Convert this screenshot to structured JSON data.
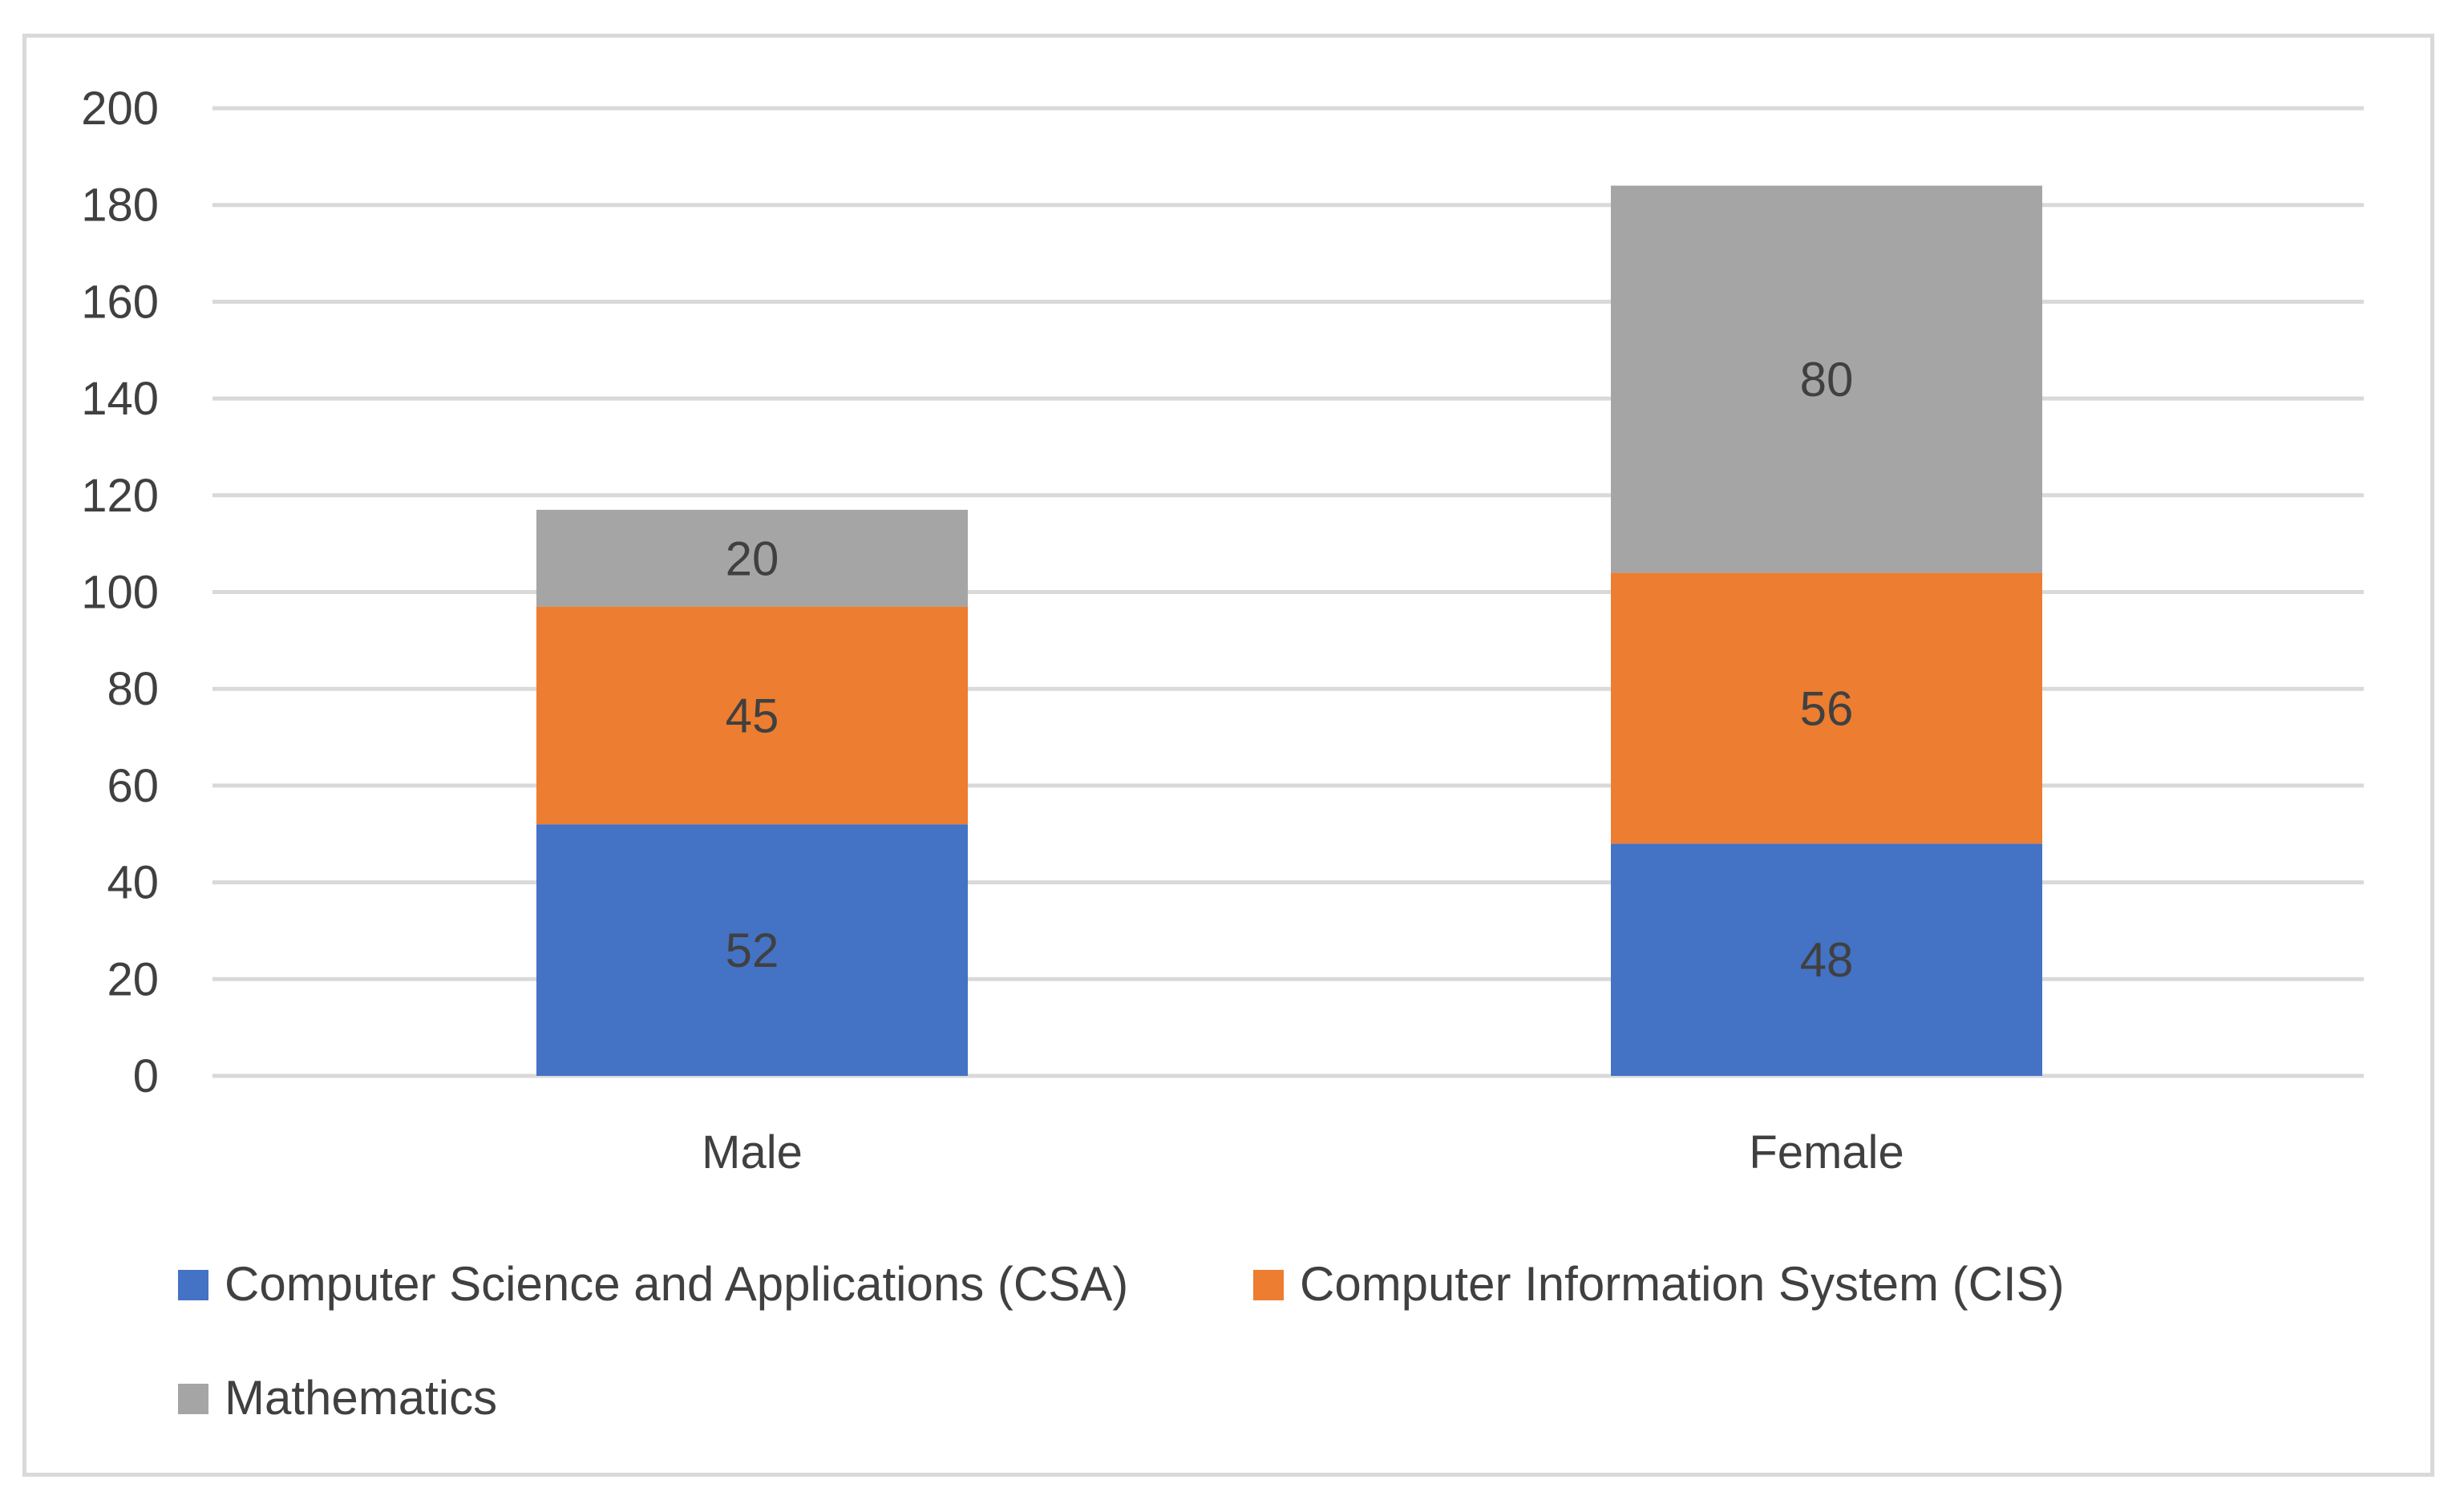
{
  "chart_data": {
    "type": "bar",
    "stacked": true,
    "title": "",
    "xlabel": "",
    "ylabel": "",
    "categories": [
      "Male",
      "Female"
    ],
    "series": [
      {
        "name": "Computer Science and Applications (CSA)",
        "color": "#4472c4",
        "values": [
          52,
          48
        ]
      },
      {
        "name": "Computer Information System (CIS)",
        "color": "#ed7d31",
        "values": [
          45,
          56
        ]
      },
      {
        "name": "Mathematics",
        "color": "#a5a5a5",
        "values": [
          20,
          80
        ]
      }
    ],
    "ylim": [
      0,
      200
    ],
    "yticks": [
      0,
      20,
      40,
      60,
      80,
      100,
      120,
      140,
      160,
      180,
      200
    ],
    "grid": true,
    "legend_position": "bottom-left"
  }
}
